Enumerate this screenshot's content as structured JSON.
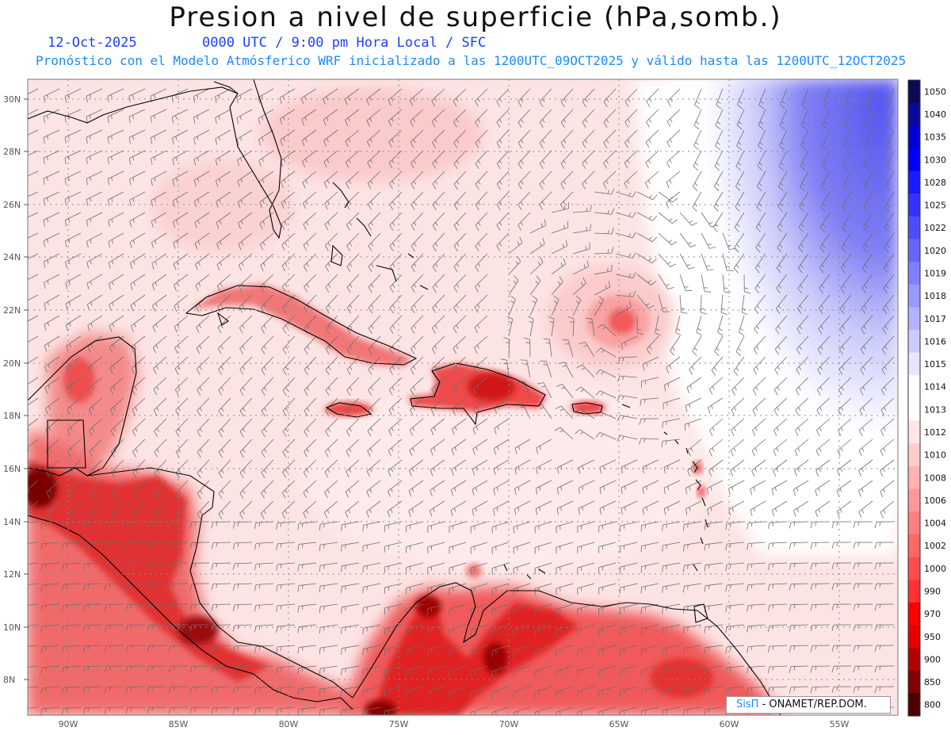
{
  "title": "Presion a nivel de superficie (hPa,somb.)",
  "date": "12-Oct-2025",
  "time_line": "0000 UTC / 9:00 pm Hora Local / SFC",
  "description": "Pronóstico con el Modelo Atmósferico WRF inicializado a las 1200UTC_09OCT2025 y válido hasta las  1200UTC_12OCT2025",
  "lat_labels": [
    "30N",
    "28N",
    "26N",
    "24N",
    "22N",
    "20N",
    "18N",
    "16N",
    "14N",
    "12N",
    "10N",
    "8N"
  ],
  "lon_labels": [
    "90W",
    "85W",
    "80W",
    "75W",
    "70W",
    "65W",
    "60W",
    "55W"
  ],
  "colorbar": {
    "levels": [
      "1050",
      "1040",
      "1035",
      "1030",
      "1028",
      "1025",
      "1022",
      "1020",
      "1019",
      "1018",
      "1017",
      "1016",
      "1015",
      "1014",
      "1013",
      "1012",
      "1010",
      "1008",
      "1006",
      "1004",
      "1002",
      "1000",
      "990",
      "970",
      "950",
      "900",
      "850",
      "800"
    ],
    "colors": [
      "#0a0a55",
      "#0a0a9a",
      "#0000d6",
      "#0000ff",
      "#1a1aff",
      "#3333ff",
      "#4d4dff",
      "#6666ff",
      "#8080ff",
      "#9999ff",
      "#b3b3ff",
      "#ccccff",
      "#e6e6ff",
      "#ffffff",
      "#ffffff",
      "#ffe6e6",
      "#ffcccc",
      "#ffb3b3",
      "#ff9999",
      "#ff8080",
      "#ff6666",
      "#ff4d4d",
      "#ff3333",
      "#ff0000",
      "#e60000",
      "#b30000",
      "#800000",
      "#4d0000"
    ]
  },
  "credit": {
    "sis": "SisΠ",
    "org": "- ONAMET/REP.DOM."
  }
}
